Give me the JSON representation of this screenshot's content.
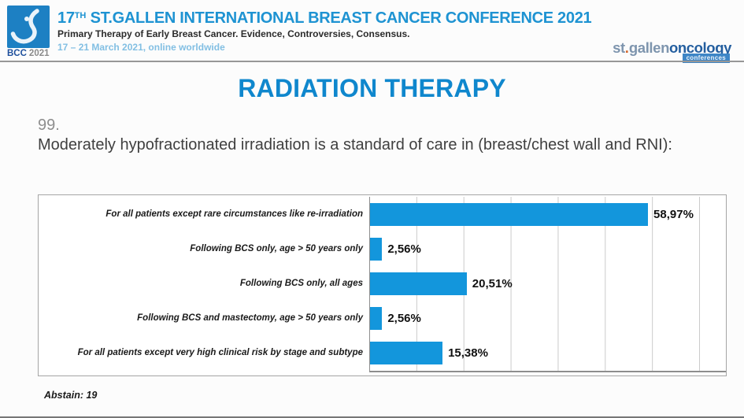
{
  "header": {
    "logo_caption": {
      "acronym": "BCC",
      "year": "2021"
    },
    "title_prefix": "17",
    "title_superscript": "TH",
    "title_rest": " ST.GALLEN INTERNATIONAL BREAST CANCER CONFERENCE 2021",
    "subtitle": "Primary Therapy of Early Breast Cancer. Evidence, Controversies, Consensus.",
    "dates": "17 – 21 March 2021, online worldwide",
    "org_logo": {
      "part_st": "st",
      "dot": ".",
      "part_gallen": "gallen",
      "part_oncology": "oncology",
      "badge": "conferences"
    }
  },
  "slide": {
    "title": "RADIATION THERAPY",
    "question_number": "99.",
    "question_text": "Moderately hypofractionated irradiation is a standard of care in (breast/chest wall and RNI):",
    "abstain_note": "Abstain: 19"
  },
  "chart_data": {
    "type": "bar",
    "orientation": "horizontal",
    "title": "",
    "xlabel": "",
    "ylabel": "",
    "categories": [
      "For all patients except rare circumstances like re-irradiation",
      "Following BCS only, age > 50 years only",
      "Following BCS only, all ages",
      "Following BCS and mastectomy, age > 50 years only",
      "For all patients except very high clinical risk by stage and subtype"
    ],
    "values": [
      58.97,
      2.56,
      20.51,
      2.56,
      15.38
    ],
    "value_labels": [
      "58,97%",
      "2,56%",
      "20,51%",
      "2,56%",
      "15,38%"
    ],
    "xlim": [
      0,
      75.5
    ],
    "gridline_interval": 10,
    "grid": true,
    "legend": false,
    "bar_color": "#1396DC",
    "gridline_color": "#CBCBCB"
  },
  "colors": {
    "conference_title_blue": "#1E93D2",
    "dates_blue": "#82BFE3",
    "slide_title_blue": "#0F87CD",
    "bar_blue": "#1396DC",
    "org_logo_light": "#7E95AE",
    "org_logo_dark": "#235E9F",
    "org_logo_orange_dot": "#D4682E"
  }
}
